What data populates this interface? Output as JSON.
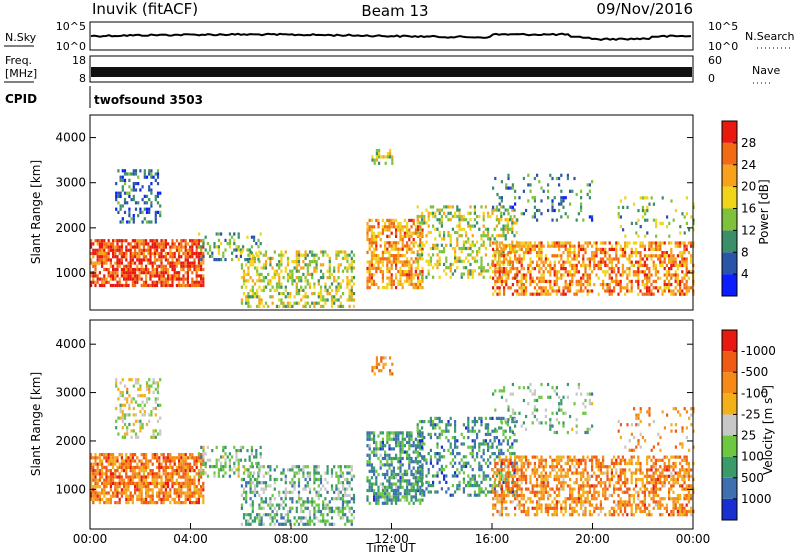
{
  "header": {
    "station": "Inuvik (fitACF)",
    "beam": "Beam 13",
    "date": "09/Nov/2016"
  },
  "top_panels": {
    "nsky_label": "N.Sky",
    "nsky_ticks": [
      "10^5",
      "10^0"
    ],
    "nsearch_label": "N.Search",
    "nsearch_ticks": [
      "10^5",
      "10^0"
    ],
    "freq_label_1": "Freq.",
    "freq_label_2": "[MHz]",
    "freq_ticks": [
      "18",
      "8"
    ],
    "nave_label": "Nave",
    "nave_ticks": [
      "60",
      "0"
    ],
    "cpid_label": "CPID",
    "cpid_value": "twofsound 3503"
  },
  "chart_data": [
    {
      "type": "heatmap",
      "name": "power",
      "ylabel": "Slant Range [km]",
      "y_ticks": [
        "1000",
        "2000",
        "3000",
        "4000"
      ],
      "y_tick_values": [
        1000,
        2000,
        3000,
        4000
      ],
      "ylim": [
        180,
        4500
      ],
      "xlim": [
        0,
        24
      ],
      "colorbar_label": "Power [dB]",
      "colorbar_ticks": [
        "4",
        "8",
        "12",
        "16",
        "20",
        "24",
        "28"
      ],
      "colorbar_colors": [
        "#0a1eff",
        "#2a54a8",
        "#3a8f6a",
        "#7ec23c",
        "#f0d51a",
        "#f7a21a",
        "#f36a14",
        "#e81a10"
      ],
      "blobs": [
        {
          "x": [
            0.0,
            4.5
          ],
          "y": [
            700,
            1750
          ],
          "c": 6.5,
          "d": 0.75
        },
        {
          "x": [
            1.0,
            2.8
          ],
          "y": [
            2100,
            3300
          ],
          "c": 1.3,
          "d": 0.35
        },
        {
          "x": [
            4.3,
            6.8
          ],
          "y": [
            1300,
            1900
          ],
          "c": 2.5,
          "d": 0.35
        },
        {
          "x": [
            6.0,
            10.5
          ],
          "y": [
            250,
            1500
          ],
          "c": 3.5,
          "d": 0.45
        },
        {
          "x": [
            11.0,
            13.2
          ],
          "y": [
            700,
            2200
          ],
          "c": 5.2,
          "d": 0.6
        },
        {
          "x": [
            11.2,
            12.0
          ],
          "y": [
            3400,
            3750
          ],
          "c": 3.5,
          "d": 0.5
        },
        {
          "x": [
            13.0,
            17.0
          ],
          "y": [
            900,
            2500
          ],
          "c": 3.5,
          "d": 0.35
        },
        {
          "x": [
            16.0,
            24.0
          ],
          "y": [
            500,
            1700
          ],
          "c": 5.5,
          "d": 0.55
        },
        {
          "x": [
            16.0,
            20.0
          ],
          "y": [
            2200,
            3200
          ],
          "c": 1.8,
          "d": 0.15
        },
        {
          "x": [
            21.0,
            24.0
          ],
          "y": [
            1800,
            2700
          ],
          "c": 2.8,
          "d": 0.15
        }
      ]
    },
    {
      "type": "heatmap",
      "name": "velocity",
      "ylabel": "Slant Range [km]",
      "y_ticks": [
        "1000",
        "2000",
        "3000",
        "4000"
      ],
      "y_tick_values": [
        1000,
        2000,
        3000,
        4000
      ],
      "ylim": [
        180,
        4500
      ],
      "xlim": [
        0,
        24
      ],
      "x_ticks": [
        "00:00",
        "04:00",
        "08:00",
        "12:00",
        "16:00",
        "20:00",
        "00:00"
      ],
      "x_tick_values": [
        0,
        4,
        8,
        12,
        16,
        20,
        24
      ],
      "xlabel": "Time UT",
      "colorbar_label": "Velocity [m s^-1]",
      "colorbar_ticks": [
        "1000",
        "500",
        "100",
        "25",
        "-25",
        "-100",
        "-500",
        "-1000"
      ],
      "colorbar_colors": [
        "#1a2fd0",
        "#3e6fb0",
        "#3a9a6a",
        "#6cc840",
        "#c8c8c8",
        "#f2b01a",
        "#f58a18",
        "#ef5a14",
        "#e81a10"
      ],
      "blobs": [
        {
          "x": [
            0.0,
            4.5
          ],
          "y": [
            700,
            1750
          ],
          "c": 6.3,
          "d": 0.75
        },
        {
          "x": [
            1.0,
            2.8
          ],
          "y": [
            2100,
            3300
          ],
          "c": 4.0,
          "d": 0.35
        },
        {
          "x": [
            4.3,
            6.8
          ],
          "y": [
            1300,
            1900
          ],
          "c": 3.0,
          "d": 0.35
        },
        {
          "x": [
            6.0,
            10.5
          ],
          "y": [
            250,
            1500
          ],
          "c": 2.6,
          "d": 0.45
        },
        {
          "x": [
            11.0,
            13.2
          ],
          "y": [
            700,
            2200
          ],
          "c": 2.0,
          "d": 0.6
        },
        {
          "x": [
            11.2,
            12.0
          ],
          "y": [
            3400,
            3750
          ],
          "c": 6.0,
          "d": 0.5
        },
        {
          "x": [
            13.0,
            17.0
          ],
          "y": [
            900,
            2500
          ],
          "c": 1.8,
          "d": 0.35
        },
        {
          "x": [
            16.0,
            24.0
          ],
          "y": [
            500,
            1700
          ],
          "c": 6.0,
          "d": 0.55
        },
        {
          "x": [
            16.0,
            20.0
          ],
          "y": [
            2200,
            3200
          ],
          "c": 3.0,
          "d": 0.15
        },
        {
          "x": [
            21.0,
            24.0
          ],
          "y": [
            1800,
            2700
          ],
          "c": 5.5,
          "d": 0.15
        }
      ]
    }
  ]
}
